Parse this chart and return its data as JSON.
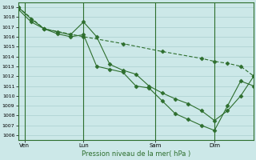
{
  "xlabel": "Pression niveau de la mer( hPa )",
  "bg_color": "#cce8e8",
  "grid_color": "#aacfcf",
  "line_color": "#2d6e2d",
  "ylim": [
    1005.5,
    1019.5
  ],
  "yticks": [
    1006,
    1007,
    1008,
    1009,
    1010,
    1011,
    1012,
    1013,
    1014,
    1015,
    1016,
    1017,
    1018,
    1019
  ],
  "xtick_labels": [
    "Ven",
    "Lun",
    "Sam",
    "Dim"
  ],
  "xtick_positions": [
    2,
    20,
    42,
    60
  ],
  "vline_positions": [
    2,
    20,
    42,
    60
  ],
  "xlim": [
    0,
    72
  ],
  "series1_x": [
    0,
    4,
    8,
    12,
    16,
    20,
    24,
    28,
    32,
    36,
    40,
    44,
    48,
    52,
    56,
    60,
    64,
    68,
    72
  ],
  "series1_y": [
    1019.0,
    1017.8,
    1016.8,
    1016.3,
    1016.0,
    1016.2,
    1013.0,
    1012.7,
    1012.4,
    1011.0,
    1010.8,
    1009.5,
    1008.2,
    1007.6,
    1007.0,
    1006.5,
    1009.0,
    1011.5,
    1011.0
  ],
  "series2_x": [
    0,
    4,
    8,
    12,
    16,
    20,
    24,
    28,
    32,
    36,
    40,
    44,
    48,
    52,
    56,
    60,
    64,
    68,
    72
  ],
  "series2_y": [
    1018.8,
    1017.5,
    1016.8,
    1016.5,
    1016.2,
    1017.5,
    1016.0,
    1013.2,
    1012.6,
    1012.2,
    1011.0,
    1010.3,
    1009.7,
    1009.2,
    1008.5,
    1007.5,
    1008.5,
    1010.0,
    1012.0
  ],
  "series3_x": [
    0,
    8,
    20,
    32,
    44,
    56,
    60,
    64,
    68,
    72
  ],
  "series3_y": [
    1019.0,
    1016.8,
    1016.0,
    1015.3,
    1014.5,
    1013.8,
    1013.5,
    1013.3,
    1013.0,
    1012.0
  ]
}
